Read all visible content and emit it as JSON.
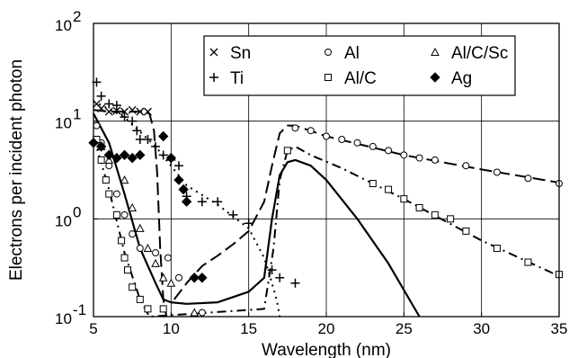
{
  "chart_data": {
    "type": "scatter",
    "xlabel": "Wavelength (nm)",
    "ylabel": "Electrons per incident photon",
    "xlim": [
      5,
      35
    ],
    "ylim": [
      0.1,
      100
    ],
    "yscale": "log",
    "grid": true,
    "legend_position": "top-center",
    "x_ticks": [
      5,
      10,
      15,
      20,
      25,
      30,
      35
    ],
    "x_tick_labels": [
      "5",
      "10",
      "15",
      "20",
      "25",
      "30",
      "35"
    ],
    "y_ticks": [
      0.1,
      1,
      10,
      100
    ],
    "y_tick_labels": [
      {
        "base": "10",
        "exp": "-1"
      },
      {
        "base": "10",
        "exp": "0"
      },
      {
        "base": "10",
        "exp": "1"
      },
      {
        "base": "10",
        "exp": "2"
      }
    ],
    "series": [
      {
        "name": "Sn",
        "marker": "x",
        "line": "dashed",
        "color": "#000000",
        "points": [
          [
            5.2,
            15.0
          ],
          [
            5.5,
            13.5
          ],
          [
            6.0,
            12.5
          ],
          [
            6.5,
            12.8
          ],
          [
            7.0,
            12.5
          ],
          [
            7.5,
            13.0
          ],
          [
            8.0,
            12.5
          ],
          [
            8.5,
            12.5
          ]
        ],
        "curve": [
          [
            5.0,
            13.0
          ],
          [
            6.0,
            12.5
          ],
          [
            8.0,
            12.5
          ],
          [
            8.6,
            12.0
          ],
          [
            8.9,
            8.0
          ],
          [
            9.1,
            3.0
          ],
          [
            9.3,
            0.5
          ],
          [
            9.5,
            0.15
          ],
          [
            9.7,
            0.1
          ]
        ]
      },
      {
        "name": "Ti",
        "marker": "+",
        "line": "dotted",
        "color": "#000000",
        "points": [
          [
            5.2,
            25.0
          ],
          [
            5.5,
            18.0
          ],
          [
            6.0,
            15.0
          ],
          [
            6.5,
            14.5
          ],
          [
            7.0,
            11.0
          ],
          [
            7.5,
            10.0
          ],
          [
            7.8,
            8.0
          ],
          [
            8.0,
            6.5
          ],
          [
            8.5,
            6.5
          ],
          [
            9.0,
            5.5
          ],
          [
            9.5,
            4.5
          ],
          [
            10.0,
            4.0
          ],
          [
            10.5,
            3.5
          ],
          [
            11.0,
            1.7
          ],
          [
            12.0,
            1.5
          ],
          [
            13.0,
            1.5
          ],
          [
            14.0,
            1.1
          ],
          [
            15.0,
            0.9
          ],
          [
            16.5,
            0.3
          ],
          [
            17.0,
            0.25
          ],
          [
            18.0,
            0.22
          ]
        ],
        "curve": [
          [
            5.0,
            16.0
          ],
          [
            7.0,
            11.0
          ],
          [
            9.0,
            5.5
          ],
          [
            11.0,
            2.2
          ],
          [
            13.0,
            1.4
          ],
          [
            15.0,
            0.8
          ],
          [
            16.0,
            0.4
          ],
          [
            16.4,
            0.25
          ],
          [
            16.8,
            0.15
          ],
          [
            17.0,
            0.1
          ]
        ]
      },
      {
        "name": "Al",
        "marker": "o",
        "line": "dashed",
        "color": "#000000",
        "points": [
          [
            5.2,
            9.0
          ],
          [
            5.5,
            6.0
          ],
          [
            6.0,
            3.5
          ],
          [
            6.5,
            1.8
          ],
          [
            7.0,
            1.1
          ],
          [
            7.5,
            0.7
          ],
          [
            8.0,
            0.5
          ],
          [
            9.0,
            0.45
          ],
          [
            9.8,
            0.4
          ],
          [
            10.5,
            0.25
          ],
          [
            12.0,
            0.11
          ],
          [
            18.0,
            8.5
          ],
          [
            19.0,
            8.0
          ],
          [
            20.0,
            7.0
          ],
          [
            21.0,
            6.5
          ],
          [
            22.0,
            6.0
          ],
          [
            23.0,
            5.5
          ],
          [
            24.0,
            5.0
          ],
          [
            25.0,
            4.5
          ],
          [
            26.0,
            4.2
          ],
          [
            27.0,
            4.0
          ],
          [
            29.0,
            3.5
          ],
          [
            31.0,
            3.0
          ],
          [
            33.0,
            2.6
          ],
          [
            35.0,
            2.3
          ]
        ],
        "curve": [
          [
            10.2,
            0.15
          ],
          [
            11.0,
            0.22
          ],
          [
            12.0,
            0.33
          ],
          [
            13.0,
            0.42
          ],
          [
            14.0,
            0.55
          ],
          [
            15.0,
            0.75
          ],
          [
            16.0,
            1.5
          ],
          [
            16.5,
            3.5
          ],
          [
            17.0,
            7.5
          ],
          [
            17.5,
            9.0
          ],
          [
            18.0,
            9.0
          ],
          [
            20.0,
            7.0
          ],
          [
            25.0,
            4.5
          ],
          [
            30.0,
            3.2
          ],
          [
            35.0,
            2.35
          ]
        ]
      },
      {
        "name": "Al/C",
        "marker": "s",
        "line": "dash-dot",
        "color": "#000000",
        "points": [
          [
            5.2,
            6.5
          ],
          [
            5.5,
            4.0
          ],
          [
            5.8,
            2.5
          ],
          [
            6.0,
            1.8
          ],
          [
            6.5,
            1.1
          ],
          [
            6.8,
            0.6
          ],
          [
            7.0,
            0.4
          ],
          [
            7.2,
            0.3
          ],
          [
            7.5,
            0.2
          ],
          [
            8.0,
            0.15
          ],
          [
            8.5,
            0.12
          ],
          [
            9.5,
            0.12
          ],
          [
            17.5,
            5.0
          ],
          [
            23.0,
            2.3
          ],
          [
            24.0,
            2.0
          ],
          [
            25.0,
            1.6
          ],
          [
            26.0,
            1.3
          ],
          [
            27.0,
            1.1
          ],
          [
            28.0,
            1.0
          ],
          [
            29.0,
            0.75
          ],
          [
            31.0,
            0.5
          ],
          [
            33.0,
            0.36
          ],
          [
            35.0,
            0.27
          ]
        ],
        "curve": [
          [
            5.0,
            7.0
          ],
          [
            6.0,
            2.0
          ],
          [
            7.0,
            0.45
          ],
          [
            8.0,
            0.15
          ],
          [
            8.6,
            0.1
          ],
          [
            16.0,
            0.12
          ],
          [
            16.6,
            0.5
          ],
          [
            17.0,
            2.5
          ],
          [
            17.5,
            5.0
          ],
          [
            18.0,
            5.5
          ],
          [
            19.0,
            4.5
          ],
          [
            21.0,
            3.3
          ],
          [
            25.0,
            1.6
          ],
          [
            30.0,
            0.6
          ],
          [
            35.0,
            0.26
          ]
        ]
      },
      {
        "name": "Al/C/Sc",
        "marker": "^",
        "line": "solid",
        "color": "#000000",
        "points": [
          [
            5.5,
            5.5
          ],
          [
            6.0,
            4.0
          ],
          [
            7.0,
            2.5
          ],
          [
            7.5,
            1.3
          ],
          [
            8.0,
            0.8
          ],
          [
            8.5,
            0.5
          ],
          [
            9.0,
            0.35
          ],
          [
            9.5,
            0.25
          ],
          [
            10.0,
            0.22
          ],
          [
            11.5,
            0.11
          ]
        ],
        "curve": [
          [
            5.0,
            12.0
          ],
          [
            6.0,
            6.0
          ],
          [
            7.0,
            1.8
          ],
          [
            8.0,
            0.5
          ],
          [
            9.0,
            0.22
          ],
          [
            9.5,
            0.15
          ],
          [
            10.0,
            0.14
          ],
          [
            11.0,
            0.135
          ],
          [
            13.0,
            0.14
          ],
          [
            15.0,
            0.18
          ],
          [
            16.0,
            0.25
          ],
          [
            16.5,
            1.0
          ],
          [
            17.0,
            2.8
          ],
          [
            17.5,
            3.8
          ],
          [
            18.0,
            4.0
          ],
          [
            19.0,
            3.5
          ],
          [
            20.0,
            2.5
          ],
          [
            22.0,
            1.0
          ],
          [
            24.0,
            0.35
          ],
          [
            26.0,
            0.1
          ]
        ]
      },
      {
        "name": "Ag",
        "marker": "D",
        "line": "dashed",
        "color": "#000000",
        "points": [
          [
            5.0,
            6.0
          ],
          [
            5.5,
            5.5
          ],
          [
            6.0,
            4.5
          ],
          [
            6.5,
            4.2
          ],
          [
            7.0,
            4.5
          ],
          [
            7.5,
            4.2
          ],
          [
            8.0,
            4.5
          ],
          [
            9.5,
            7.0
          ],
          [
            10.0,
            4.2
          ],
          [
            10.5,
            2.5
          ],
          [
            10.8,
            2.0
          ],
          [
            11.0,
            1.5
          ],
          [
            11.5,
            0.25
          ],
          [
            12.0,
            0.25
          ]
        ]
      }
    ]
  }
}
